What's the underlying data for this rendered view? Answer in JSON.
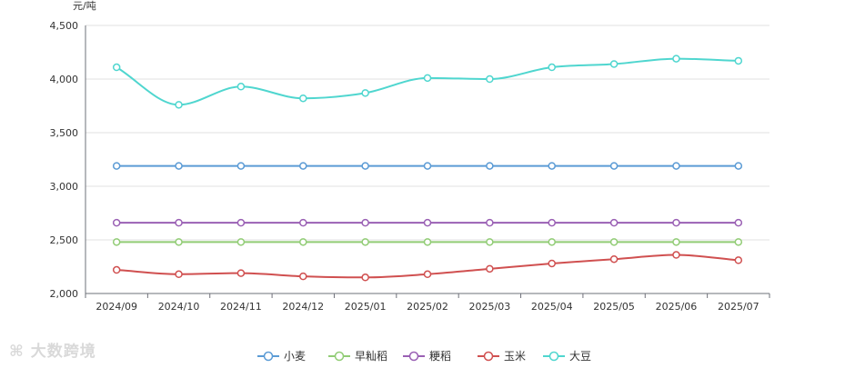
{
  "chart_data": {
    "type": "line",
    "ylabel": "元/吨",
    "ylim": [
      2000,
      4500
    ],
    "yticks": [
      2000,
      2500,
      3000,
      3500,
      4000,
      4500
    ],
    "ytick_labels": [
      "2,000",
      "2,500",
      "3,000",
      "3,500",
      "4,000",
      "4,500"
    ],
    "categories": [
      "2024/09",
      "2024/10",
      "2024/11",
      "2024/12",
      "2025/01",
      "2025/02",
      "2025/03",
      "2025/04",
      "2025/05",
      "2025/06",
      "2025/07"
    ],
    "grid": true,
    "legend_position": "bottom",
    "series": [
      {
        "name": "小麦",
        "color": "#5b9bd5",
        "smooth": false,
        "values": [
          3190,
          3190,
          3190,
          3190,
          3190,
          3190,
          3190,
          3190,
          3190,
          3190,
          3190
        ]
      },
      {
        "name": "早籼稻",
        "color": "#91cc75",
        "smooth": false,
        "values": [
          2480,
          2480,
          2480,
          2480,
          2480,
          2480,
          2480,
          2480,
          2480,
          2480,
          2480
        ]
      },
      {
        "name": "粳稻",
        "color": "#9a60b4",
        "smooth": false,
        "values": [
          2660,
          2660,
          2660,
          2660,
          2660,
          2660,
          2660,
          2660,
          2660,
          2660,
          2660
        ]
      },
      {
        "name": "玉米",
        "color": "#d05050",
        "smooth": true,
        "values": [
          2220,
          2180,
          2190,
          2160,
          2150,
          2180,
          2230,
          2280,
          2320,
          2360,
          2310
        ]
      },
      {
        "name": "大豆",
        "color": "#4fd6cf",
        "smooth": true,
        "values": [
          4110,
          3760,
          3930,
          3820,
          3870,
          4010,
          4000,
          4110,
          4140,
          4190,
          4170
        ]
      }
    ]
  },
  "watermark": {
    "text": "大数跨境",
    "icon": "logo-icon"
  }
}
